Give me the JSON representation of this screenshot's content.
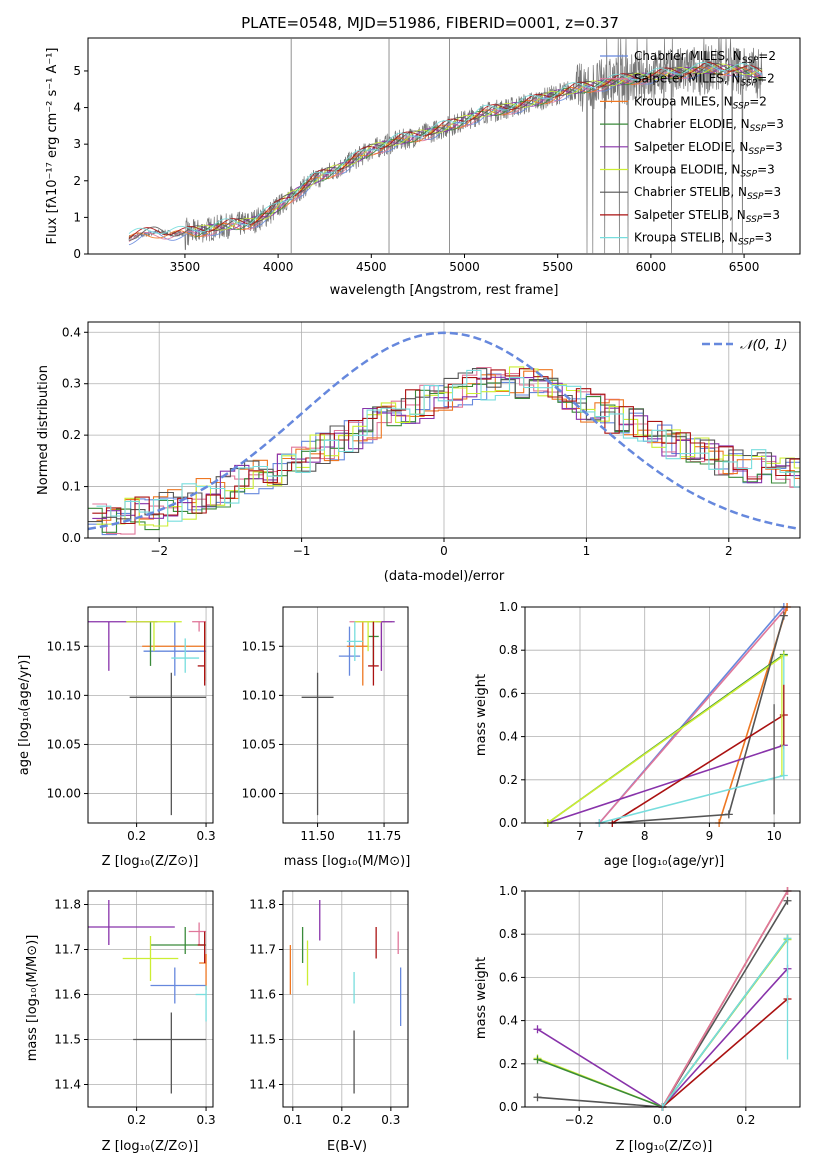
{
  "figure": {
    "title": "PLATE=0548, MJD=51986, FIBERID=0001, z=0.37"
  },
  "colors": {
    "chabrier_miles": "#6688dd",
    "salpeter_miles": "#e0779a",
    "kroupa_miles": "#ee7722",
    "chabrier_elodie": "#3a8a3a",
    "salpeter_elodie": "#8833aa",
    "kroupa_elodie": "#ccee33",
    "chabrier_stelib": "#555555",
    "salpeter_stelib": "#aa1111",
    "kroupa_stelib": "#77dddd",
    "observed": "#777777",
    "gauss": "#6688dd"
  },
  "legend_spectrum": [
    {
      "label": "Chabrier MILES, N",
      "sub": "SSP",
      "suffix": "=2",
      "color": "#6688dd"
    },
    {
      "label": "Salpeter MILES, N",
      "sub": "SSP",
      "suffix": "=2",
      "color": "#e0779a"
    },
    {
      "label": "Kroupa MILES, N",
      "sub": "SSP",
      "suffix": "=2",
      "color": "#ee7722"
    },
    {
      "label": "Chabrier ELODIE, N",
      "sub": "SSP",
      "suffix": "=3",
      "color": "#3a8a3a"
    },
    {
      "label": "Salpeter ELODIE, N",
      "sub": "SSP",
      "suffix": "=3",
      "color": "#8833aa"
    },
    {
      "label": "Kroupa ELODIE, N",
      "sub": "SSP",
      "suffix": "=3",
      "color": "#ccee33"
    },
    {
      "label": "Chabrier STELIB, N",
      "sub": "SSP",
      "suffix": "=3",
      "color": "#555555"
    },
    {
      "label": "Salpeter STELIB, N",
      "sub": "SSP",
      "suffix": "=3",
      "color": "#aa1111"
    },
    {
      "label": "Kroupa STELIB, N",
      "sub": "SSP",
      "suffix": "=3",
      "color": "#77dddd"
    }
  ],
  "legend_gauss": {
    "label": "𝒩(0, 1)"
  },
  "chart_data": [
    {
      "id": "spectrum",
      "type": "line",
      "xlabel": "wavelength [Angstrom, rest frame]",
      "ylabel": "Flux [fλ10⁻¹⁷ erg cm⁻² s⁻¹ A⁻¹]",
      "xlim": [
        2980,
        6800
      ],
      "ylim": [
        0,
        5.9
      ],
      "xticks": [
        3500,
        4000,
        4500,
        5000,
        5500,
        6000,
        6500
      ],
      "yticks": [
        0,
        1,
        2,
        3,
        4,
        5
      ],
      "continuum": {
        "x": [
          3200,
          3350,
          3500,
          3700,
          3850,
          3950,
          4050,
          4200,
          4350,
          4500,
          4650,
          4800,
          4950,
          5100,
          5250,
          5400,
          5550,
          5700,
          5850,
          6000,
          6150,
          6300,
          6450,
          6600
        ],
        "y": [
          0.45,
          0.6,
          0.55,
          0.75,
          0.85,
          1.1,
          1.5,
          2.05,
          2.4,
          2.85,
          3.1,
          3.3,
          3.55,
          3.85,
          4.0,
          4.2,
          4.45,
          4.6,
          4.75,
          4.85,
          4.95,
          5.05,
          5.05,
          4.9
        ]
      }
    },
    {
      "id": "residuals",
      "type": "step",
      "xlabel": "(data-model)/error",
      "ylabel": "Normed distribution",
      "xlim": [
        -2.5,
        2.5
      ],
      "ylim": [
        0,
        0.42
      ],
      "xticks": [
        -2,
        -1,
        0,
        1,
        2
      ],
      "yticks": [
        0.0,
        0.1,
        0.2,
        0.3,
        0.4
      ],
      "bin_width": 0.1,
      "envelope": {
        "x": [
          -2.5,
          -2.0,
          -1.5,
          -1.0,
          -0.5,
          0.0,
          0.4,
          0.7,
          1.0,
          1.5,
          2.0,
          2.5
        ],
        "y": [
          0.03,
          0.05,
          0.1,
          0.15,
          0.22,
          0.28,
          0.31,
          0.3,
          0.26,
          0.2,
          0.15,
          0.12
        ]
      },
      "gauss": {
        "mean": 0,
        "sigma": 1
      }
    },
    {
      "id": "age_vs_z",
      "type": "errorbar",
      "xlabel": "Z [log₁₀(Z/Z⊙)]",
      "ylabel": "age  [log₁₀(age/yr)]",
      "xlim": [
        0.13,
        0.31
      ],
      "ylim": [
        9.97,
        10.19
      ],
      "xticks": [
        0.2,
        0.3
      ],
      "yticks": [
        10.0,
        10.05,
        10.1,
        10.15
      ],
      "points": [
        {
          "model": "chabrier_miles",
          "x": 0.255,
          "y": 10.145,
          "xerr": [
            0.045,
            0.045
          ],
          "yerr": [
            0.025,
            0.03
          ]
        },
        {
          "model": "salpeter_miles",
          "x": 0.29,
          "y": 10.175,
          "xerr": [
            0.01,
            0.01
          ],
          "yerr": [
            0.01,
            0.0
          ]
        },
        {
          "model": "kroupa_miles",
          "x": 0.298,
          "y": 10.15,
          "xerr": [
            0.09,
            0.0
          ],
          "yerr": [
            0.035,
            0.025
          ]
        },
        {
          "model": "chabrier_elodie",
          "x": 0.22,
          "y": 10.145,
          "xerr": [
            0.0,
            0.0
          ],
          "yerr": [
            0.015,
            0.03
          ]
        },
        {
          "model": "salpeter_elodie",
          "x": 0.16,
          "y": 10.175,
          "xerr": [
            0.03,
            0.07
          ],
          "yerr": [
            0.05,
            0.0
          ]
        },
        {
          "model": "kroupa_elodie",
          "x": 0.225,
          "y": 10.175,
          "xerr": [
            0.04,
            0.04
          ],
          "yerr": [
            0.03,
            0.0
          ]
        },
        {
          "model": "chabrier_stelib",
          "x": 0.25,
          "y": 10.098,
          "xerr": [
            0.06,
            0.05
          ],
          "yerr": [
            0.12,
            0.025
          ]
        },
        {
          "model": "salpeter_stelib",
          "x": 0.298,
          "y": 10.13,
          "xerr": [
            0.01,
            0.0
          ],
          "yerr": [
            0.02,
            0.045
          ]
        },
        {
          "model": "kroupa_stelib",
          "x": 0.27,
          "y": 10.138,
          "xerr": [
            0.02,
            0.02
          ],
          "yerr": [
            0.015,
            0.02
          ]
        }
      ]
    },
    {
      "id": "age_vs_mass",
      "type": "errorbar",
      "xlabel": "mass [log₁₀(M/M⊙)]",
      "ylabel": "",
      "xlim": [
        11.37,
        11.84
      ],
      "ylim": [
        9.97,
        10.19
      ],
      "xticks": [
        11.5,
        11.75
      ],
      "yticks": [
        10.0,
        10.05,
        10.1,
        10.15
      ],
      "points": [
        {
          "model": "chabrier_miles",
          "x": 11.62,
          "y": 10.14,
          "xerr": [
            0.04,
            0.04
          ],
          "yerr": [
            0.02,
            0.03
          ]
        },
        {
          "model": "salpeter_miles",
          "x": 11.74,
          "y": 10.175,
          "xerr": [
            0.12,
            0.04
          ],
          "yerr": [
            0.05,
            0.0
          ]
        },
        {
          "model": "kroupa_miles",
          "x": 11.67,
          "y": 10.15,
          "xerr": [
            0.06,
            0.02
          ],
          "yerr": [
            0.04,
            0.025
          ]
        },
        {
          "model": "chabrier_elodie",
          "x": 11.71,
          "y": 10.16,
          "xerr": [
            0.02,
            0.02
          ],
          "yerr": [
            0.03,
            0.015
          ]
        },
        {
          "model": "salpeter_elodie",
          "x": 11.74,
          "y": 10.175,
          "xerr": [
            0.02,
            0.05
          ],
          "yerr": [
            0.05,
            0.0
          ]
        },
        {
          "model": "kroupa_elodie",
          "x": 11.69,
          "y": 10.175,
          "xerr": [
            0.05,
            0.05
          ],
          "yerr": [
            0.03,
            0.0
          ]
        },
        {
          "model": "chabrier_stelib",
          "x": 11.5,
          "y": 10.098,
          "xerr": [
            0.06,
            0.06
          ],
          "yerr": [
            0.12,
            0.025
          ]
        },
        {
          "model": "salpeter_stelib",
          "x": 11.71,
          "y": 10.13,
          "xerr": [
            0.02,
            0.02
          ],
          "yerr": [
            0.02,
            0.045
          ]
        },
        {
          "model": "kroupa_stelib",
          "x": 11.64,
          "y": 10.155,
          "xerr": [
            0.03,
            0.03
          ],
          "yerr": [
            0.02,
            0.02
          ]
        }
      ]
    },
    {
      "id": "mw_vs_age",
      "type": "line",
      "xlabel": "age  [log₁₀(age/yr)]",
      "ylabel": "mass weight",
      "xlim": [
        6.15,
        10.4
      ],
      "ylim": [
        0,
        1.0
      ],
      "xticks": [
        7,
        8,
        9,
        10
      ],
      "yticks": [
        0.0,
        0.2,
        0.4,
        0.6,
        0.8,
        1.0
      ],
      "series": [
        {
          "model": "chabrier_miles",
          "x": [
            7.3,
            10.15
          ],
          "y": [
            0.0,
            1.0
          ],
          "err": [
            0,
            0
          ]
        },
        {
          "model": "salpeter_miles",
          "x": [
            7.3,
            10.2
          ],
          "y": [
            0.0,
            1.0
          ],
          "err": [
            0,
            0
          ]
        },
        {
          "model": "kroupa_miles",
          "x": [
            9.15,
            10.2
          ],
          "y": [
            0.0,
            1.0
          ],
          "err": [
            0,
            0
          ]
        },
        {
          "model": "chabrier_elodie",
          "x": [
            6.5,
            10.15
          ],
          "y": [
            0.0,
            0.78
          ],
          "err": [
            0,
            0.0
          ]
        },
        {
          "model": "salpeter_elodie",
          "x": [
            6.5,
            10.15
          ],
          "y": [
            0.0,
            0.36
          ],
          "err": [
            0,
            0
          ]
        },
        {
          "model": "kroupa_elodie",
          "x": [
            6.5,
            10.15
          ],
          "y": [
            0.0,
            0.775
          ],
          "err": [
            0,
            0.0
          ]
        },
        {
          "model": "chabrier_stelib",
          "x": [
            7.5,
            9.3,
            10.15
          ],
          "y": [
            0.0,
            0.04,
            0.96
          ],
          "err": [
            0,
            0,
            0
          ]
        },
        {
          "model": "salpeter_stelib",
          "x": [
            7.5,
            10.15
          ],
          "y": [
            0.0,
            0.5
          ],
          "err": [
            0,
            0
          ]
        },
        {
          "model": "kroupa_stelib",
          "x": [
            7.3,
            10.15
          ],
          "y": [
            0.0,
            0.22
          ],
          "err": [
            0,
            0
          ]
        }
      ],
      "vbars": [
        {
          "model": "kroupa_stelib",
          "x": 10.15,
          "y": [
            0.22,
            0.78
          ]
        },
        {
          "model": "kroupa_elodie",
          "x": 10.12,
          "y": [
            0.22,
            0.78
          ]
        },
        {
          "model": "chabrier_stelib",
          "x": 10.0,
          "y": [
            0.04,
            0.55
          ]
        },
        {
          "model": "salpeter_stelib",
          "x": 10.15,
          "y": [
            0.36,
            0.64
          ]
        }
      ]
    },
    {
      "id": "mass_vs_z",
      "type": "errorbar",
      "xlabel": "Z [log₁₀(Z/Z⊙)]",
      "ylabel": "mass [log₁₀(M/M⊙)]",
      "xlim": [
        0.13,
        0.31
      ],
      "ylim": [
        11.35,
        11.83
      ],
      "xticks": [
        0.2,
        0.3
      ],
      "yticks": [
        11.4,
        11.5,
        11.6,
        11.7,
        11.8
      ],
      "points": [
        {
          "model": "chabrier_miles",
          "x": 0.255,
          "y": 11.62,
          "xerr": [
            0.035,
            0.045
          ],
          "yerr": [
            0.04,
            0.04
          ]
        },
        {
          "model": "salpeter_miles",
          "x": 0.29,
          "y": 11.74,
          "xerr": [
            0.015,
            0.01
          ],
          "yerr": [
            0.03,
            0.02
          ]
        },
        {
          "model": "kroupa_miles",
          "x": 0.3,
          "y": 11.67,
          "xerr": [
            0.01,
            0.0
          ],
          "yerr": [
            0.06,
            0.02
          ]
        },
        {
          "model": "chabrier_elodie",
          "x": 0.27,
          "y": 11.71,
          "xerr": [
            0.05,
            0.03
          ],
          "yerr": [
            0.02,
            0.04
          ]
        },
        {
          "model": "salpeter_elodie",
          "x": 0.16,
          "y": 11.75,
          "xerr": [
            0.03,
            0.095
          ],
          "yerr": [
            0.04,
            0.06
          ]
        },
        {
          "model": "kroupa_elodie",
          "x": 0.22,
          "y": 11.68,
          "xerr": [
            0.04,
            0.04
          ],
          "yerr": [
            0.05,
            0.05
          ]
        },
        {
          "model": "chabrier_stelib",
          "x": 0.25,
          "y": 11.5,
          "xerr": [
            0.055,
            0.05
          ],
          "yerr": [
            0.12,
            0.06
          ]
        },
        {
          "model": "salpeter_stelib",
          "x": 0.298,
          "y": 11.71,
          "xerr": [
            0.01,
            0.0
          ],
          "yerr": [
            0.04,
            0.03
          ]
        },
        {
          "model": "kroupa_stelib",
          "x": 0.3,
          "y": 11.6,
          "xerr": [
            0.015,
            0.0
          ],
          "yerr": [
            0.06,
            0.02
          ]
        }
      ]
    },
    {
      "id": "mass_vs_ebv",
      "type": "errorbar",
      "xlabel": "E(B-V)",
      "ylabel": "",
      "xlim": [
        0.08,
        0.335
      ],
      "ylim": [
        11.35,
        11.83
      ],
      "xticks": [
        0.1,
        0.2,
        0.3
      ],
      "yticks": [
        11.4,
        11.5,
        11.6,
        11.7,
        11.8
      ],
      "points": [
        {
          "model": "chabrier_miles",
          "x": 0.32,
          "y": 11.6,
          "xerr": [
            0,
            0
          ],
          "yerr": [
            0.07,
            0.06
          ]
        },
        {
          "model": "salpeter_miles",
          "x": 0.315,
          "y": 11.72,
          "xerr": [
            0,
            0
          ],
          "yerr": [
            0.03,
            0.02
          ]
        },
        {
          "model": "kroupa_miles",
          "x": 0.095,
          "y": 11.67,
          "xerr": [
            0,
            0
          ],
          "yerr": [
            0.07,
            0.04
          ]
        },
        {
          "model": "chabrier_elodie",
          "x": 0.12,
          "y": 11.7,
          "xerr": [
            0,
            0
          ],
          "yerr": [
            0.03,
            0.05
          ]
        },
        {
          "model": "salpeter_elodie",
          "x": 0.155,
          "y": 11.76,
          "xerr": [
            0,
            0
          ],
          "yerr": [
            0.04,
            0.05
          ]
        },
        {
          "model": "kroupa_elodie",
          "x": 0.13,
          "y": 11.67,
          "xerr": [
            0,
            0
          ],
          "yerr": [
            0.05,
            0.05
          ]
        },
        {
          "model": "chabrier_stelib",
          "x": 0.225,
          "y": 11.45,
          "xerr": [
            0,
            0
          ],
          "yerr": [
            0.07,
            0.07
          ]
        },
        {
          "model": "salpeter_stelib",
          "x": 0.27,
          "y": 11.71,
          "xerr": [
            0,
            0
          ],
          "yerr": [
            0.03,
            0.04
          ]
        },
        {
          "model": "kroupa_stelib",
          "x": 0.225,
          "y": 11.62,
          "xerr": [
            0,
            0
          ],
          "yerr": [
            0.04,
            0.03
          ]
        }
      ]
    },
    {
      "id": "mw_vs_z",
      "type": "line",
      "xlabel": "Z [log₁₀(Z/Z⊙)]",
      "ylabel": "mass weight",
      "xlim": [
        -0.33,
        0.33
      ],
      "ylim": [
        0,
        1.0
      ],
      "xticks": [
        -0.2,
        0.0,
        0.2
      ],
      "yticks": [
        0.0,
        0.2,
        0.4,
        0.6,
        0.8,
        1.0
      ],
      "series": [
        {
          "model": "salpeter_elodie",
          "x": [
            -0.3,
            0.0,
            0.3
          ],
          "y": [
            0.36,
            0.0,
            0.64
          ]
        },
        {
          "model": "kroupa_elodie",
          "x": [
            -0.3,
            0.0,
            0.3
          ],
          "y": [
            0.225,
            0.0,
            0.775
          ]
        },
        {
          "model": "chabrier_elodie",
          "x": [
            -0.3,
            0.0,
            0.3
          ],
          "y": [
            0.22,
            0.0,
            0.78
          ]
        },
        {
          "model": "chabrier_stelib",
          "x": [
            -0.3,
            0.0,
            0.3
          ],
          "y": [
            0.045,
            0.0,
            0.955
          ]
        },
        {
          "model": "chabrier_miles",
          "x": [
            0.0,
            0.3
          ],
          "y": [
            0.0,
            1.0
          ]
        },
        {
          "model": "kroupa_miles",
          "x": [
            0.0,
            0.3
          ],
          "y": [
            0.0,
            1.0
          ]
        },
        {
          "model": "salpeter_miles",
          "x": [
            0.0,
            0.3
          ],
          "y": [
            0.0,
            1.0
          ]
        },
        {
          "model": "salpeter_stelib",
          "x": [
            0.0,
            0.3
          ],
          "y": [
            0.0,
            0.5
          ]
        },
        {
          "model": "kroupa_stelib",
          "x": [
            0.0,
            0.3
          ],
          "y": [
            0.0,
            0.78
          ]
        }
      ],
      "vbars": [
        {
          "model": "kroupa_stelib",
          "x": 0.3,
          "y": [
            0.22,
            0.78
          ]
        }
      ]
    }
  ]
}
